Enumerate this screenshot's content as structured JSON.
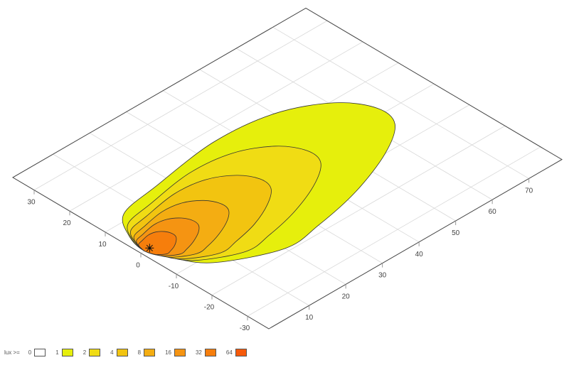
{
  "chart_data": {
    "type": "contour",
    "projection": "isometric-3d-floor",
    "x_ticks": [
      10,
      20,
      30,
      40,
      50,
      60,
      70
    ],
    "y_ticks": [
      -30,
      -20,
      -10,
      0,
      10,
      20,
      30
    ],
    "xlim": [
      -1,
      79
    ],
    "ylim": [
      -36,
      36
    ],
    "grid": true,
    "luminaire": [
      1.4,
      0
    ],
    "legend": {
      "title": "lux >=",
      "placement": "bottom-left",
      "levels": [
        {
          "value": "0",
          "color": "#ffffff"
        },
        {
          "value": "1",
          "color": "#e6ef0c"
        },
        {
          "value": "2",
          "color": "#f0dc14"
        },
        {
          "value": "4",
          "color": "#f2c410"
        },
        {
          "value": "8",
          "color": "#f4ad12"
        },
        {
          "value": "16",
          "color": "#f59412"
        },
        {
          "value": "32",
          "color": "#f67e0c"
        },
        {
          "value": "64",
          "color": "#f65a0a"
        }
      ]
    },
    "contours": [
      {
        "level": 1,
        "color": "#e6ef0c",
        "points": [
          [
            0,
            0
          ],
          [
            1.5,
            6
          ],
          [
            6,
            11.9
          ],
          [
            16.8,
            14
          ],
          [
            35,
            16.6
          ],
          [
            50,
            15
          ],
          [
            60.8,
            9.3
          ],
          [
            65.5,
            2
          ],
          [
            64.2,
            -4.3
          ],
          [
            56,
            -10
          ],
          [
            43,
            -15.1
          ],
          [
            30,
            -18
          ],
          [
            19.9,
            -18.9
          ],
          [
            6.8,
            -12.4
          ],
          [
            2,
            -5
          ]
        ]
      },
      {
        "level": 2,
        "color": "#f0dc14",
        "points": [
          [
            0,
            0
          ],
          [
            1,
            4.5
          ],
          [
            4.2,
            8.9
          ],
          [
            11.8,
            10.5
          ],
          [
            24.5,
            12.5
          ],
          [
            35,
            11.3
          ],
          [
            42.6,
            7
          ],
          [
            45.9,
            1.5
          ],
          [
            45,
            -3.2
          ],
          [
            39.2,
            -7.5
          ],
          [
            30.1,
            -11.3
          ],
          [
            21,
            -13.5
          ],
          [
            13.9,
            -14.2
          ],
          [
            4.8,
            -9.3
          ],
          [
            1.4,
            -3.8
          ]
        ]
      },
      {
        "level": 4,
        "color": "#f2c410",
        "points": [
          [
            0,
            0
          ],
          [
            0.8,
            3.5
          ],
          [
            3,
            6.9
          ],
          [
            8.4,
            8.1
          ],
          [
            17.5,
            9.6
          ],
          [
            25,
            8.7
          ],
          [
            30.4,
            5.4
          ],
          [
            32.8,
            1.2
          ],
          [
            32.1,
            -2.5
          ],
          [
            28,
            -5.8
          ],
          [
            21.5,
            -8.8
          ],
          [
            15,
            -10.4
          ],
          [
            10,
            -11
          ],
          [
            3.4,
            -7.2
          ],
          [
            1,
            -2.9
          ]
        ]
      },
      {
        "level": 8,
        "color": "#f4ad12",
        "points": [
          [
            0,
            0
          ],
          [
            0.5,
            2.5
          ],
          [
            2,
            5
          ],
          [
            5.5,
            5.9
          ],
          [
            11.6,
            7
          ],
          [
            16.5,
            6.3
          ],
          [
            20,
            3.9
          ],
          [
            21.6,
            0.8
          ],
          [
            21.2,
            -1.8
          ],
          [
            18.5,
            -4.2
          ],
          [
            14.2,
            -6.3
          ],
          [
            9.9,
            -7.6
          ],
          [
            6.6,
            -7.9
          ],
          [
            2.2,
            -5.2
          ],
          [
            0.7,
            -2.1
          ]
        ]
      },
      {
        "level": 16,
        "color": "#f59412",
        "points": [
          [
            0,
            0
          ],
          [
            0.3,
            1.8
          ],
          [
            1.3,
            3.6
          ],
          [
            3.5,
            4.2
          ],
          [
            7.4,
            5
          ],
          [
            10.5,
            4.5
          ],
          [
            12.8,
            2.8
          ],
          [
            13.8,
            0.6
          ],
          [
            13.5,
            -1.3
          ],
          [
            11.8,
            -3
          ],
          [
            9,
            -4.5
          ],
          [
            6.3,
            -5.4
          ],
          [
            4.2,
            -5.7
          ],
          [
            1.4,
            -3.7
          ],
          [
            0.4,
            -1.5
          ]
        ]
      },
      {
        "level": 32,
        "color": "#f67e0c",
        "points": [
          [
            0,
            0
          ],
          [
            0.2,
            1.2
          ],
          [
            0.7,
            2.4
          ],
          [
            2,
            2.8
          ],
          [
            4.2,
            3.3
          ],
          [
            6,
            3
          ],
          [
            7.3,
            1.9
          ],
          [
            7.9,
            0.4
          ],
          [
            7.7,
            -0.9
          ],
          [
            6.7,
            -2
          ],
          [
            5.2,
            -3
          ],
          [
            3.6,
            -3.6
          ],
          [
            2.4,
            -3.8
          ],
          [
            0.8,
            -2.5
          ],
          [
            0.2,
            -1
          ]
        ]
      }
    ]
  }
}
